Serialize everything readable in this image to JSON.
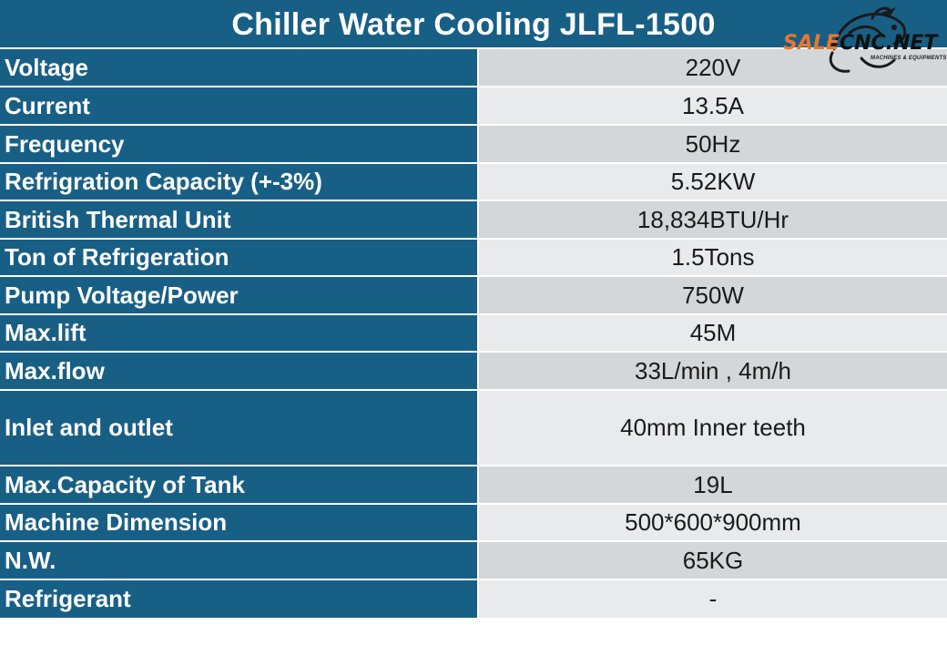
{
  "title": "Chiller Water Cooling JLFL-1500",
  "logo": {
    "part1": "SALE",
    "part2": "CNC.NET",
    "tagline": "MACHINES & EQUIPMENTS",
    "icon": "dragon-icon"
  },
  "colors": {
    "header_bg": "#185f86",
    "value_bg_dark": "#d4d7d9",
    "value_bg_light": "#e8eaeb",
    "logo_orange": "#e8772e"
  },
  "specs": [
    {
      "label": "Voltage",
      "value": "220V"
    },
    {
      "label": "Current",
      "value": "13.5A"
    },
    {
      "label": "Frequency",
      "value": "50Hz"
    },
    {
      "label": "Refrigration Capacity (+-3%)",
      "value": "5.52KW"
    },
    {
      "label": "British Thermal Unit",
      "value": "18,834BTU/Hr"
    },
    {
      "label": "Ton of Refrigeration",
      "value": "1.5Tons"
    },
    {
      "label": "Pump Voltage/Power",
      "value": "750W"
    },
    {
      "label": "Max.lift",
      "value": "45M"
    },
    {
      "label": "Max.flow",
      "value": "33L/min , 4m/h"
    },
    {
      "label": "Inlet and outlet",
      "value": "40mm Inner teeth"
    },
    {
      "label": "Max.Capacity of Tank",
      "value": "19L"
    },
    {
      "label": "Machine Dimension",
      "value": "500*600*900mm"
    },
    {
      "label": "N.W.",
      "value": "65KG"
    },
    {
      "label": "Refrigerant",
      "value": "-"
    }
  ]
}
